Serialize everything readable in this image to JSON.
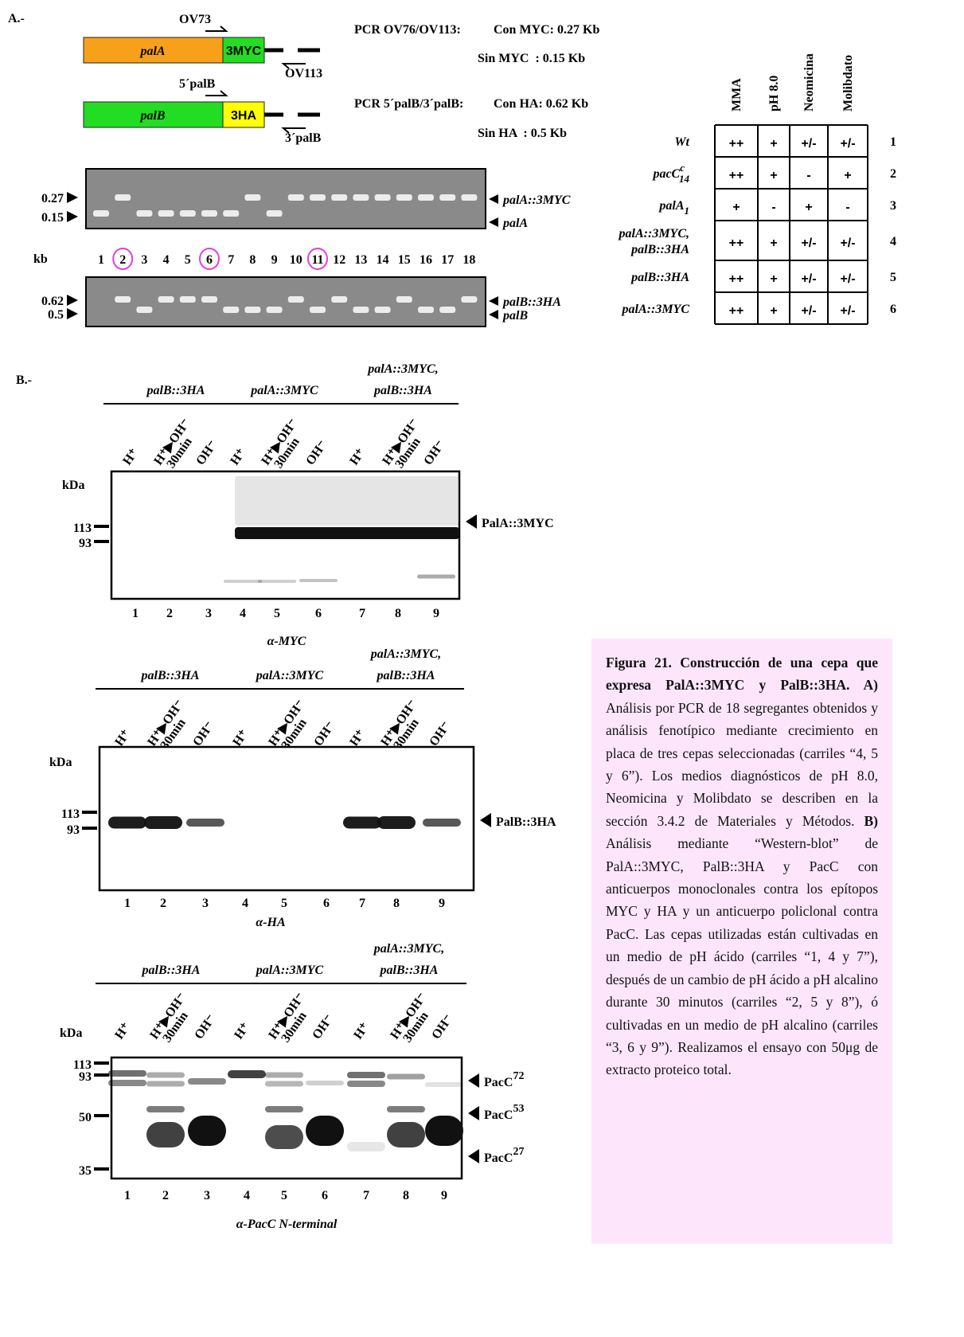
{
  "panel_a": {
    "label": "A.-",
    "constructs": [
      {
        "gene": "palA",
        "tag": "3MYC",
        "forward_primer": "OV73",
        "reverse_primer": "OV113"
      },
      {
        "gene": "palB",
        "tag": "3HA",
        "forward_primer": "5´palB",
        "reverse_primer": "3´palB"
      }
    ],
    "pcr": [
      {
        "primers": "PCR OV76/OV113:",
        "with_tag": "Con MYC: 0.27 Kb",
        "without_tag": "Sin MYC  : 0.15 Kb"
      },
      {
        "primers": "PCR 5´palB/3´palB:",
        "with_tag": "Con HA: 0.62 Kb",
        "without_tag": "Sin HA  : 0.5 Kb"
      }
    ],
    "gels": [
      {
        "sizes": [
          "0.27",
          "0.15"
        ],
        "bands": [
          "palA::3MYC",
          "palA"
        ]
      },
      {
        "sizes": [
          "0.62",
          "0.5"
        ],
        "bands": [
          "palB::3HA",
          "palB"
        ]
      }
    ],
    "lane_unit": "kb",
    "lanes": [
      "1",
      "2",
      "3",
      "4",
      "5",
      "6",
      "7",
      "8",
      "9",
      "10",
      "11",
      "12",
      "13",
      "14",
      "15",
      "16",
      "17",
      "18"
    ],
    "table": {
      "columns": [
        "MMA",
        "pH 8.0",
        "Neomicina",
        "Molibdato"
      ],
      "rows": [
        {
          "strain": [
            "Wt"
          ],
          "values": [
            "++",
            "+",
            "+/-",
            "+/-"
          ],
          "number": "1"
        },
        {
          "strain": [
            "pacC"
          ],
          "sup": "c",
          "sub": "14",
          "values": [
            "++",
            "+",
            "-",
            "+"
          ],
          "number": "2"
        },
        {
          "strain": [
            "palA"
          ],
          "sub": "1",
          "values": [
            "+",
            "-",
            "+",
            "-"
          ],
          "number": "3"
        },
        {
          "strain": [
            "palA::3MYC,",
            "palB::3HA"
          ],
          "values": [
            "++",
            "+",
            "+/-",
            "+/-"
          ],
          "number": "4"
        },
        {
          "strain": [
            "palB::3HA"
          ],
          "values": [
            "++",
            "+",
            "+/-",
            "+/-"
          ],
          "number": "5"
        },
        {
          "strain": [
            "palA::3MYC"
          ],
          "values": [
            "++",
            "+",
            "+/-",
            "+/-"
          ],
          "number": "6"
        }
      ]
    }
  },
  "panel_b": {
    "label": "B.-",
    "strains": [
      [
        "palB::3HA"
      ],
      [
        "palA::3MYC"
      ],
      [
        "palA::3MYC,",
        "palB::3HA"
      ]
    ],
    "conditions": [
      [
        "H⁺"
      ],
      [
        "H⁺▶OH⁻",
        "30min"
      ],
      [
        "OH⁻"
      ]
    ],
    "mass_unit": "kDa",
    "lanes": [
      "1",
      "2",
      "3",
      "4",
      "5",
      "6",
      "7",
      "8",
      "9"
    ],
    "blots": [
      {
        "markers": [
          "113",
          "93"
        ],
        "bands": [
          {
            "name": "PalA::3MYC"
          }
        ],
        "antibody": "α-MYC"
      },
      {
        "markers": [
          "113",
          "93"
        ],
        "bands": [
          {
            "name": "PalB::3HA"
          }
        ],
        "antibody": "α-HA"
      },
      {
        "markers": [
          "113",
          "93",
          "50",
          "35"
        ],
        "bands": [
          {
            "name": "PacC",
            "sup": "72"
          },
          {
            "name": "PacC",
            "sup": "53"
          },
          {
            "name": "PacC",
            "sup": "27"
          }
        ],
        "antibody": "α-PacC N-terminal"
      }
    ]
  },
  "caption": [
    {
      "bold": true,
      "text": "Figura 21. Construcción de una cepa que expresa PalA::3MYC y PalB::3HA. A)"
    },
    {
      "bold": false,
      "text": " Análisis por PCR de 18 segregantes obtenidos y análisis fenotípico mediante crecimiento en placa de tres cepas seleccionadas (carriles “4, 5 y 6”). Los medios diagnósticos de pH 8.0, Neomicina y Molibdato se describen en la sección 3.4.2 de Materiales y Métodos. "
    },
    {
      "bold": true,
      "text": "B)"
    },
    {
      "bold": false,
      "text": " Análisis mediante “Western-blot” de PalA::3MYC, PalB::3HA y PacC con anticuerpos monoclonales contra los epítopos MYC y HA y un anticuerpo policlonal contra PacC. Las cepas utilizadas están cultivadas en un medio de pH ácido (carriles “1, 4 y 7”), después de un cambio de pH ácido a pH alcalino durante 30 minutos (carriles “2, 5 y 8”), ó cultivadas en un medio de pH alcalino (carriles “3, 6 y 9”). Realizamos el ensayo con 50μg de extracto proteico total."
    }
  ]
}
